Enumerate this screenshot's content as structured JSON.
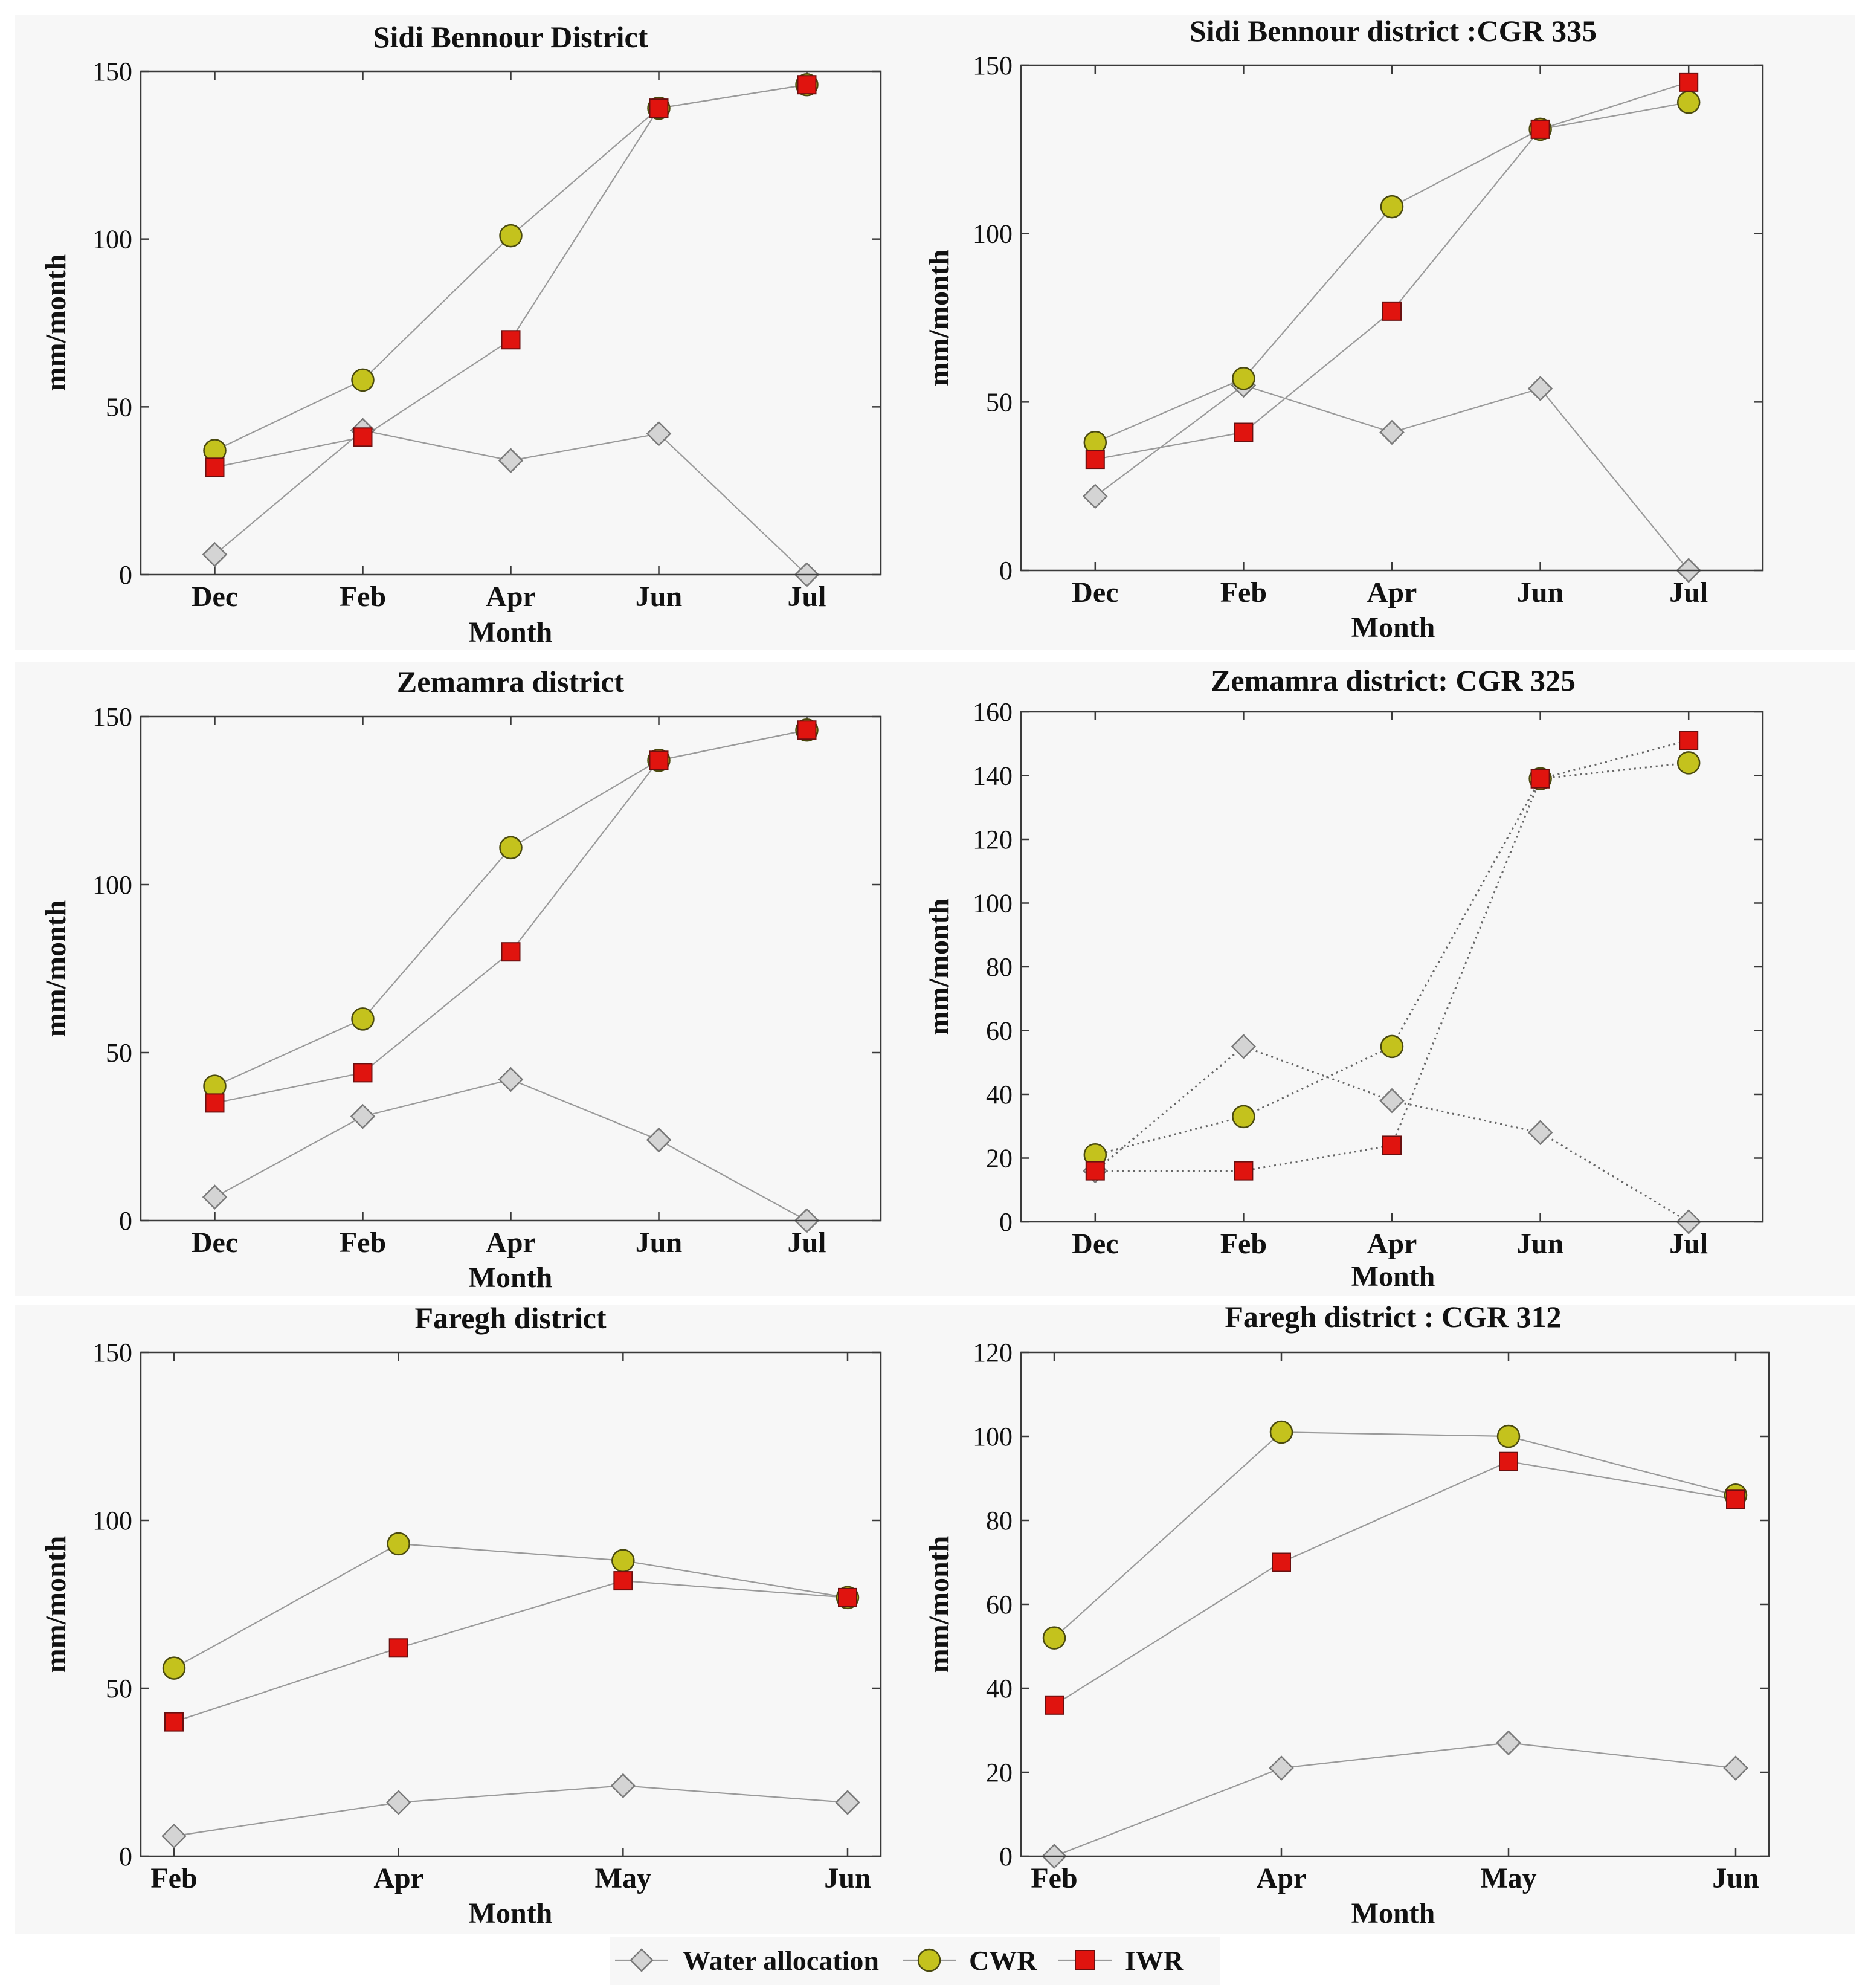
{
  "colors": {
    "water_allocation": "#d4d4d4",
    "cwr": "#c4c21d",
    "iwr": "#e0140f"
  },
  "legend": {
    "items": [
      {
        "name": "Water allocation",
        "marker": "diamond"
      },
      {
        "name": "CWR",
        "marker": "circle"
      },
      {
        "name": "IWR",
        "marker": "square"
      }
    ]
  },
  "chart_data": [
    {
      "type": "line",
      "title": "Sidi Bennour District",
      "xlabel": "Month",
      "ylabel": "mm/month",
      "categories": [
        "Dec",
        "Feb",
        "Apr",
        "Jun",
        "Jul"
      ],
      "ylim": [
        0,
        150
      ],
      "yticks": [
        0,
        50,
        100,
        150
      ],
      "grid": false,
      "line_style": "solid",
      "series": [
        {
          "name": "Water allocation",
          "marker": "diamond",
          "values": [
            6,
            43,
            34,
            42,
            0
          ]
        },
        {
          "name": "CWR",
          "marker": "circle",
          "values": [
            37,
            58,
            101,
            139,
            146
          ]
        },
        {
          "name": "IWR",
          "marker": "square",
          "values": [
            32,
            41,
            70,
            139,
            146
          ]
        }
      ]
    },
    {
      "type": "line",
      "title": "Sidi Bennour district :CGR 335",
      "xlabel": "Month",
      "ylabel": "mm/month",
      "categories": [
        "Dec",
        "Feb",
        "Apr",
        "Jun",
        "Jul"
      ],
      "ylim": [
        0,
        150
      ],
      "yticks": [
        0,
        50,
        100,
        150
      ],
      "grid": false,
      "line_style": "solid",
      "series": [
        {
          "name": "Water allocation",
          "marker": "diamond",
          "values": [
            22,
            55,
            41,
            54,
            0
          ]
        },
        {
          "name": "CWR",
          "marker": "circle",
          "values": [
            38,
            57,
            108,
            131,
            139
          ]
        },
        {
          "name": "IWR",
          "marker": "square",
          "values": [
            33,
            41,
            77,
            131,
            145
          ]
        }
      ]
    },
    {
      "type": "line",
      "title": "Zemamra district",
      "xlabel": "Month",
      "ylabel": "mm/month",
      "categories": [
        "Dec",
        "Feb",
        "Apr",
        "Jun",
        "Jul"
      ],
      "ylim": [
        0,
        150
      ],
      "yticks": [
        0,
        50,
        100,
        150
      ],
      "grid": false,
      "line_style": "solid",
      "series": [
        {
          "name": "Water allocation",
          "marker": "diamond",
          "values": [
            7,
            31,
            42,
            24,
            0
          ]
        },
        {
          "name": "CWR",
          "marker": "circle",
          "values": [
            40,
            60,
            111,
            137,
            146
          ]
        },
        {
          "name": "IWR",
          "marker": "square",
          "values": [
            35,
            44,
            80,
            137,
            146
          ]
        }
      ]
    },
    {
      "type": "line",
      "title": "Zemamra district: CGR 325",
      "xlabel": "Month",
      "ylabel": "mm/month",
      "categories": [
        "Dec",
        "Feb",
        "Apr",
        "Jun",
        "Jul"
      ],
      "ylim": [
        0,
        160
      ],
      "yticks": [
        0,
        20,
        40,
        60,
        80,
        100,
        120,
        140,
        160
      ],
      "grid": false,
      "line_style": "dotted",
      "series": [
        {
          "name": "Water allocation",
          "marker": "diamond",
          "values": [
            16,
            55,
            38,
            28,
            0
          ]
        },
        {
          "name": "CWR",
          "marker": "circle",
          "values": [
            21,
            33,
            55,
            139,
            144
          ]
        },
        {
          "name": "IWR",
          "marker": "square",
          "values": [
            16,
            16,
            24,
            139,
            151
          ]
        }
      ]
    },
    {
      "type": "line",
      "title": "Faregh district",
      "xlabel": "Month",
      "ylabel": "mm/month",
      "categories": [
        "Feb",
        "Apr",
        "May",
        "Jun"
      ],
      "ylim": [
        0,
        150
      ],
      "yticks": [
        0,
        50,
        100,
        150
      ],
      "grid": false,
      "line_style": "solid",
      "series": [
        {
          "name": "Water allocation",
          "marker": "diamond",
          "values": [
            6,
            16,
            21,
            16
          ]
        },
        {
          "name": "CWR",
          "marker": "circle",
          "values": [
            56,
            93,
            88,
            77
          ]
        },
        {
          "name": "IWR",
          "marker": "square",
          "values": [
            40,
            62,
            82,
            77
          ]
        }
      ]
    },
    {
      "type": "line",
      "title": "Faregh district : CGR 312",
      "xlabel": "Month",
      "ylabel": "mm/month",
      "categories": [
        "Feb",
        "Apr",
        "May",
        "Jun"
      ],
      "ylim": [
        0,
        120
      ],
      "yticks": [
        0,
        20,
        40,
        60,
        80,
        100,
        120
      ],
      "grid": false,
      "line_style": "solid",
      "series": [
        {
          "name": "Water allocation",
          "marker": "diamond",
          "values": [
            0,
            21,
            27,
            21
          ]
        },
        {
          "name": "CWR",
          "marker": "circle",
          "values": [
            52,
            101,
            100,
            86
          ]
        },
        {
          "name": "IWR",
          "marker": "square",
          "values": [
            36,
            70,
            94,
            85
          ]
        }
      ]
    }
  ]
}
